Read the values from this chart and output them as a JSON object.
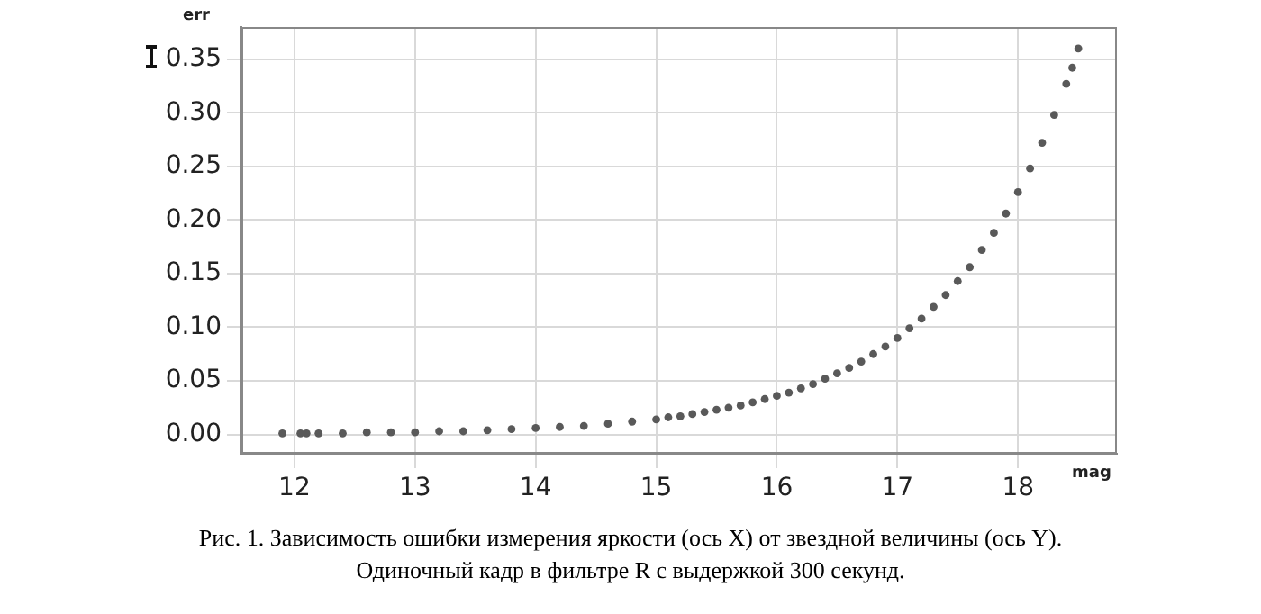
{
  "chart_data": {
    "type": "scatter",
    "xlabel": "mag",
    "ylabel": "err",
    "x": [
      11.9,
      12.05,
      12.1,
      12.2,
      12.4,
      12.6,
      12.8,
      13.0,
      13.2,
      13.4,
      13.6,
      13.8,
      14.0,
      14.2,
      14.4,
      14.6,
      14.8,
      15.0,
      15.1,
      15.2,
      15.3,
      15.4,
      15.5,
      15.6,
      15.7,
      15.8,
      15.9,
      16.0,
      16.1,
      16.2,
      16.3,
      16.4,
      16.5,
      16.6,
      16.7,
      16.8,
      16.9,
      17.0,
      17.1,
      17.2,
      17.3,
      17.4,
      17.5,
      17.6,
      17.7,
      17.8,
      17.9,
      18.0,
      18.1,
      18.2,
      18.3,
      18.4,
      18.45,
      18.5
    ],
    "series": [
      {
        "color": "#595959",
        "values": [
          0.001,
          0.001,
          0.001,
          0.001,
          0.001,
          0.002,
          0.002,
          0.002,
          0.003,
          0.003,
          0.004,
          0.005,
          0.006,
          0.007,
          0.008,
          0.01,
          0.012,
          0.014,
          0.016,
          0.017,
          0.019,
          0.021,
          0.023,
          0.025,
          0.027,
          0.03,
          0.033,
          0.036,
          0.039,
          0.043,
          0.047,
          0.052,
          0.057,
          0.062,
          0.068,
          0.075,
          0.082,
          0.09,
          0.099,
          0.108,
          0.119,
          0.13,
          0.143,
          0.156,
          0.172,
          0.188,
          0.206,
          0.226,
          0.248,
          0.272,
          0.298,
          0.327,
          0.342,
          0.36
        ]
      }
    ],
    "xlim": [
      11.56,
      18.82
    ],
    "xticks": [
      12,
      13,
      14,
      15,
      16,
      17,
      18
    ],
    "ylim": [
      -0.018,
      0.38
    ],
    "yticks": [
      {
        "value": 0,
        "label": "0.00"
      },
      {
        "value": 0.05,
        "label": "0.05"
      },
      {
        "value": 0.1,
        "label": "0.10"
      },
      {
        "value": 0.15,
        "label": "0.15"
      },
      {
        "value": 0.2,
        "label": "0.20"
      },
      {
        "value": 0.25,
        "label": "0.25"
      },
      {
        "value": 0.3,
        "label": "0.30"
      },
      {
        "value": 0.35,
        "label": "0.35"
      }
    ],
    "grid": true,
    "marker": "circle",
    "legend": false,
    "annotations": [
      "Рис. 1. Зависимость ошибки измерения яркости (ось X) от звездной величины (ось Y).",
      "Одиночный кадр в фильтре R с выдержкой 300 секунд."
    ]
  }
}
